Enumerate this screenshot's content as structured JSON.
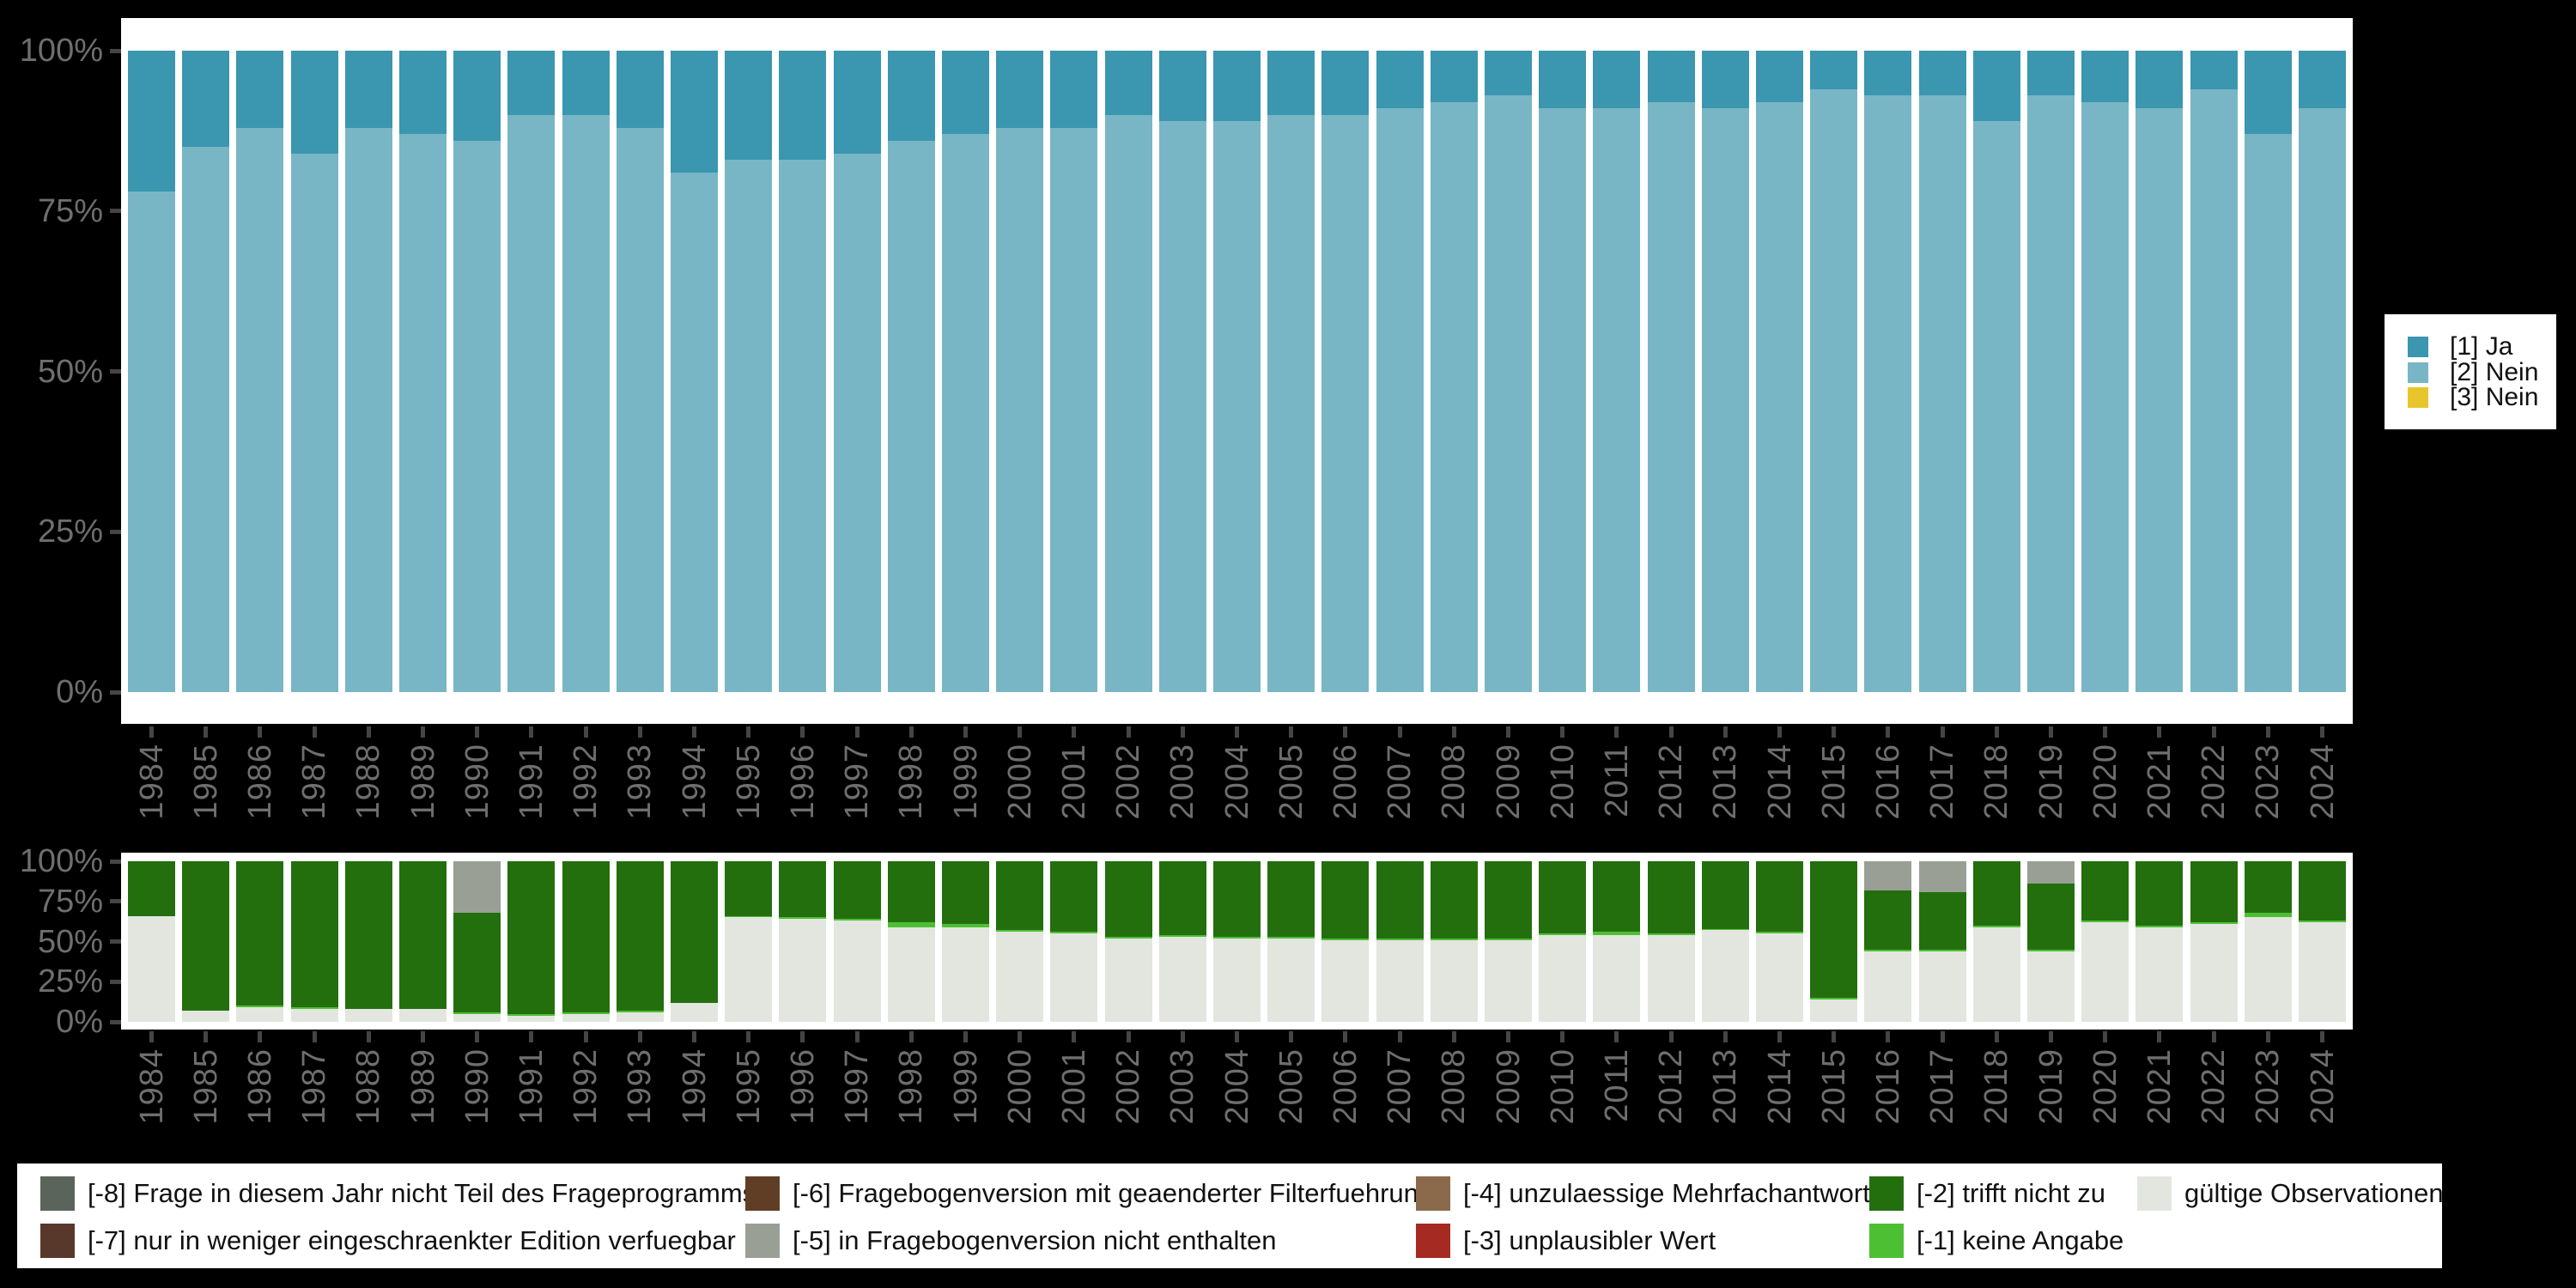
{
  "accent_colors": {
    "background": "#000000",
    "plot_background": "#ffffff",
    "axis_text": "#6e6e6e",
    "axis_tick": "#454545",
    "legend_text": "#111111"
  },
  "top_legend": {
    "items": [
      {
        "label": "[1] Ja",
        "color": "#3b96af"
      },
      {
        "label": "[2] Nein",
        "color": "#79b6c5"
      },
      {
        "label": "[3] Nein",
        "color": "#e8c62b"
      }
    ]
  },
  "bottom_legend": {
    "columns": [
      {
        "entries": [
          {
            "label": "[-8] Frage in diesem Jahr nicht Teil des Frageprogramms",
            "color": "#5b645a"
          },
          {
            "label": "[-7] nur in weniger eingeschraenkter Edition verfuegbar",
            "color": "#58382a"
          }
        ]
      },
      {
        "entries": [
          {
            "label": "[-6] Fragebogenversion mit geaenderter Filterfuehrung",
            "color": "#603e26"
          },
          {
            "label": "[-5] in Fragebogenversion nicht enthalten",
            "color": "#9a9f96"
          }
        ]
      },
      {
        "entries": [
          {
            "label": "[-4] unzulaessige Mehrfachantwort",
            "color": "#8a6a4b"
          },
          {
            "label": "[-3] unplausibler Wert",
            "color": "#a52a21"
          }
        ]
      },
      {
        "entries": [
          {
            "label": "[-2] trifft nicht zu",
            "color": "#236f0e"
          },
          {
            "label": "[-1] keine Angabe",
            "color": "#4dbf33"
          }
        ]
      },
      {
        "entries": [
          {
            "label": "gültige Observationen",
            "color": "#e2e6df"
          }
        ]
      }
    ]
  },
  "chart_data": [
    {
      "type": "bar",
      "stacked": true,
      "stack_order": "top_to_bottom",
      "title": "",
      "xlabel": "",
      "ylabel": "",
      "ylim": [
        0,
        100
      ],
      "grid": false,
      "legend_position": "right",
      "y_ticks": {
        "pcts": [
          0,
          25,
          50,
          75,
          100
        ],
        "labels": [
          "0%",
          "25%",
          "50%",
          "75%",
          "100%"
        ]
      },
      "categories": [
        "1984",
        "1985",
        "1986",
        "1987",
        "1988",
        "1989",
        "1990",
        "1991",
        "1992",
        "1993",
        "1994",
        "1995",
        "1996",
        "1997",
        "1998",
        "1999",
        "2000",
        "2001",
        "2002",
        "2003",
        "2004",
        "2005",
        "2006",
        "2007",
        "2008",
        "2009",
        "2010",
        "2011",
        "2012",
        "2013",
        "2014",
        "2015",
        "2016",
        "2017",
        "2018",
        "2019",
        "2020",
        "2021",
        "2022",
        "2023",
        "2024"
      ],
      "series": [
        {
          "name": "[1] Ja",
          "color": "#3b96af",
          "values": [
            22,
            15,
            12,
            16,
            12,
            13,
            14,
            10,
            10,
            12,
            19,
            17,
            17,
            16,
            14,
            13,
            12,
            12,
            10,
            11,
            11,
            10,
            10,
            9,
            8,
            7,
            9,
            9,
            8,
            9,
            8,
            6,
            7,
            7,
            11,
            7,
            8,
            9,
            6,
            13,
            9
          ]
        },
        {
          "name": "[2] Nein",
          "color": "#79b6c5",
          "values": [
            78,
            85,
            88,
            84,
            88,
            87,
            86,
            90,
            90,
            88,
            81,
            83,
            83,
            84,
            86,
            87,
            88,
            88,
            90,
            89,
            89,
            90,
            90,
            91,
            92,
            93,
            91,
            91,
            92,
            91,
            92,
            94,
            93,
            93,
            89,
            93,
            92,
            91,
            94,
            87,
            91
          ]
        },
        {
          "name": "[3] Nein",
          "color": "#e8c62b",
          "values": [
            0,
            0,
            0,
            0,
            0,
            0,
            0,
            0,
            0,
            0,
            0,
            0,
            0,
            0,
            0,
            0,
            0,
            0,
            0,
            0,
            0,
            0,
            0,
            0,
            0,
            0,
            0,
            0,
            0,
            0,
            0,
            0,
            0,
            0,
            0,
            0,
            0,
            0,
            0,
            0,
            0
          ]
        }
      ]
    },
    {
      "type": "bar",
      "stacked": true,
      "stack_order": "top_to_bottom",
      "title": "",
      "xlabel": "",
      "ylabel": "",
      "ylim": [
        0,
        100
      ],
      "grid": false,
      "legend_position": "bottom",
      "y_ticks": {
        "pcts": [
          0,
          25,
          50,
          75,
          100
        ],
        "labels": [
          "0%",
          "25%",
          "50%",
          "75%",
          "100%"
        ]
      },
      "categories": [
        "1984",
        "1985",
        "1986",
        "1987",
        "1988",
        "1989",
        "1990",
        "1991",
        "1992",
        "1993",
        "1994",
        "1995",
        "1996",
        "1997",
        "1998",
        "1999",
        "2000",
        "2001",
        "2002",
        "2003",
        "2004",
        "2005",
        "2006",
        "2007",
        "2008",
        "2009",
        "2010",
        "2011",
        "2012",
        "2013",
        "2014",
        "2015",
        "2016",
        "2017",
        "2018",
        "2019",
        "2020",
        "2021",
        "2022",
        "2023",
        "2024"
      ],
      "series": [
        {
          "name": "[-5] in Fragebogenversion nicht enthalten",
          "color": "#9a9f96",
          "values": [
            0,
            0,
            0,
            0,
            0,
            0,
            32,
            0,
            0,
            0,
            0,
            0,
            0,
            0,
            0,
            0,
            0,
            0,
            0,
            0,
            0,
            0,
            0,
            0,
            0,
            0,
            0,
            0,
            0,
            0,
            0,
            0,
            18,
            19,
            0,
            14,
            0,
            0,
            0,
            0,
            0
          ]
        },
        {
          "name": "[-2] trifft nicht zu",
          "color": "#236f0e",
          "values": [
            34,
            93,
            90,
            91,
            92,
            92,
            62,
            95,
            94,
            93,
            88,
            34,
            35,
            36,
            38,
            39,
            43,
            44,
            47,
            46,
            47,
            47,
            48,
            48,
            48,
            48,
            45,
            44,
            45,
            42,
            44,
            85,
            37,
            36,
            40,
            41,
            37,
            40,
            38,
            32,
            37
          ]
        },
        {
          "name": "[-1] keine Angabe",
          "color": "#4dbf33",
          "values": [
            0,
            0,
            1,
            1,
            0,
            0,
            1,
            1,
            1,
            1,
            0,
            1,
            1,
            1,
            3,
            2,
            1,
            1,
            1,
            1,
            1,
            1,
            1,
            1,
            1,
            1,
            1,
            2,
            1,
            1,
            1,
            1,
            1,
            1,
            1,
            1,
            1,
            1,
            1,
            3,
            1
          ]
        },
        {
          "name": "gültige Observationen",
          "color": "#e2e6df",
          "values": [
            66,
            7,
            9,
            8,
            8,
            8,
            5,
            4,
            5,
            6,
            12,
            65,
            64,
            63,
            59,
            59,
            56,
            55,
            52,
            53,
            52,
            52,
            51,
            51,
            51,
            51,
            54,
            54,
            54,
            57,
            55,
            14,
            44,
            44,
            59,
            44,
            62,
            59,
            61,
            65,
            62
          ]
        }
      ]
    }
  ]
}
